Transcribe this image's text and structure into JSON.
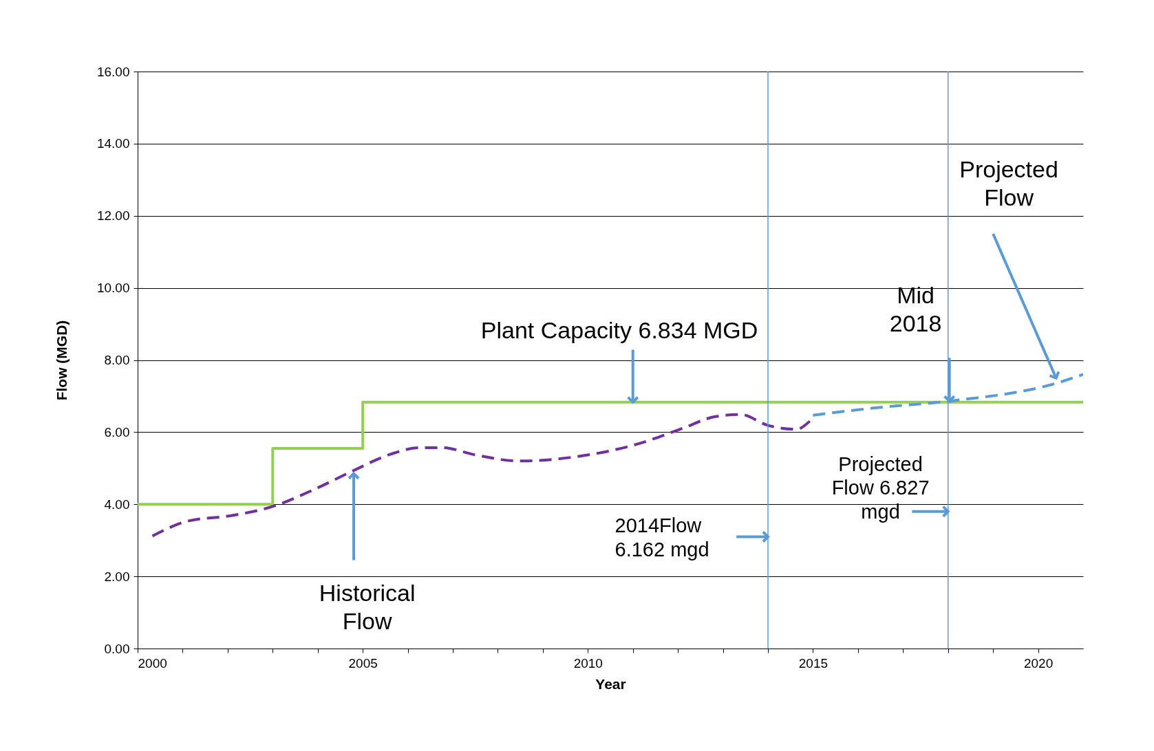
{
  "chart_data": {
    "type": "line",
    "xlabel": "Year",
    "ylabel": "Flow (MGD)",
    "xlim": [
      2000,
      2021
    ],
    "ylim": [
      0,
      16
    ],
    "xticks": [
      2000,
      {
        "value": 2001,
        "label": null
      },
      {
        "value": 2002,
        "label": null
      },
      {
        "value": 2003,
        "label": null
      },
      {
        "value": 2004,
        "label": null
      },
      2005,
      {
        "value": 2006,
        "label": null
      },
      {
        "value": 2007,
        "label": null
      },
      {
        "value": 2008,
        "label": null
      },
      {
        "value": 2009,
        "label": null
      },
      2010,
      {
        "value": 2011,
        "label": null
      },
      {
        "value": 2012,
        "label": null
      },
      {
        "value": 2013,
        "label": null
      },
      {
        "value": 2014,
        "label": null
      },
      2015,
      {
        "value": 2016,
        "label": null
      },
      {
        "value": 2017,
        "label": null
      },
      {
        "value": 2018,
        "label": null
      },
      {
        "value": 2019,
        "label": null
      },
      2020
    ],
    "yticks": [
      {
        "value": 0,
        "label": "0.00"
      },
      {
        "value": 2,
        "label": "2.00"
      },
      {
        "value": 4,
        "label": "4.00"
      },
      {
        "value": 6,
        "label": "6.00"
      },
      {
        "value": 8,
        "label": "8.00"
      },
      {
        "value": 10,
        "label": "10.00"
      },
      {
        "value": 12,
        "label": "12.00"
      },
      {
        "value": 14,
        "label": "14.00"
      },
      {
        "value": 16,
        "label": "16.00"
      }
    ],
    "grid": "y",
    "series": [
      {
        "type": "step",
        "color": "#92d050",
        "line_style": "solid",
        "x": [
          2000,
          2003,
          2005,
          2021
        ],
        "values": [
          4.0,
          5.55,
          6.834,
          6.834
        ]
      },
      {
        "color": "#7030a0",
        "line_style": "dashed",
        "x": [
          2000.33,
          2001.1,
          2002.1,
          2003.0,
          2003.9,
          2004.77,
          2005.62,
          2006.27,
          2006.76,
          2007.5,
          2008.48,
          2009.8,
          2011.1,
          2012.09,
          2012.83,
          2013.4,
          2013.97,
          2014.63,
          2014.95
        ],
        "values": [
          3.12,
          3.53,
          3.69,
          3.94,
          4.4,
          4.92,
          5.39,
          5.57,
          5.57,
          5.37,
          5.2,
          5.33,
          5.67,
          6.1,
          6.43,
          6.49,
          6.2,
          6.08,
          6.33
        ]
      },
      {
        "color": "#5b9bd5",
        "line_style": "dashed",
        "x": [
          2015.0,
          2016.35,
          2018.03,
          2020.44,
          2021
        ],
        "values": [
          6.47,
          6.67,
          6.86,
          7.37,
          7.6
        ]
      }
    ],
    "ref_lines": [
      {
        "axis": "x",
        "value": 2014,
        "color": "#5b9bd5"
      },
      {
        "axis": "x",
        "value": 2018,
        "color": "#5b9bd5"
      }
    ],
    "annotations": [
      {
        "text": "Plant Capacity 6.834 MGD",
        "x": 2011,
        "y": 6.834
      },
      {
        "text": "Historical\nFlow",
        "x": 2004.8,
        "y": 4.85
      },
      {
        "text": "2014Flow\n6.162 mgd",
        "x": 2014,
        "y": 3.1
      },
      {
        "text": "Projected\nFlow 6.827\nmgd",
        "x": 2018,
        "y": 3.8
      },
      {
        "text": "Mid\n2018",
        "x": 2018.03,
        "y": 6.86
      },
      {
        "text": "Projected\nFlow",
        "x": 2020.4,
        "y": 7.5
      }
    ]
  }
}
